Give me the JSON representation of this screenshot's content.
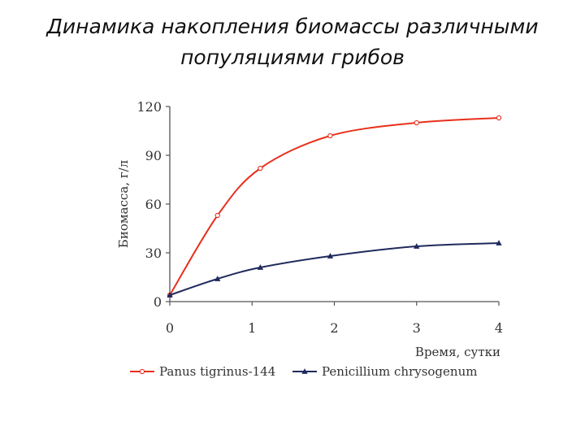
{
  "slide": {
    "title_line1": "Динамика накопления биомассы различными",
    "title_line2": "популяциями грибов"
  },
  "chart_data": {
    "type": "line",
    "title": "",
    "xlabel": "Время, сутки",
    "ylabel": "Биомасса, г/л",
    "xlim": [
      0,
      4
    ],
    "ylim": [
      0,
      120
    ],
    "xticks": [
      0,
      1,
      2,
      3,
      4
    ],
    "yticks": [
      0,
      30,
      60,
      90,
      120
    ],
    "grid": false,
    "legend_position": "bottom",
    "series": [
      {
        "name": "Panus tigrinus-144",
        "color": "#e8301c",
        "marker": "circle",
        "x": [
          0,
          0.58,
          1.1,
          1.95,
          3.0,
          4.0
        ],
        "y": [
          4,
          53,
          82,
          102,
          110,
          113
        ]
      },
      {
        "name": "Penicillium chrysogenum",
        "color": "#1f2a5c",
        "marker": "triangle",
        "x": [
          0,
          0.58,
          1.1,
          1.95,
          3.0,
          4.0
        ],
        "y": [
          4,
          14,
          21,
          28,
          34,
          36
        ]
      }
    ]
  }
}
